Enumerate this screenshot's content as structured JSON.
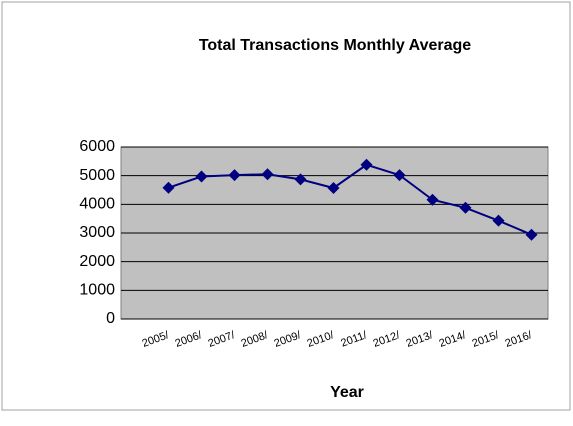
{
  "chart_data": {
    "type": "line",
    "title": "Total Transactions Monthly Average",
    "x_label": "Year",
    "categories": [
      "2005/",
      "2006/",
      "2007/",
      "2008/",
      "2009/",
      "2010/",
      "2011/",
      "2012/",
      "2013/",
      "2014/",
      "2015/",
      "2016/"
    ],
    "series": [
      {
        "color": "#000080",
        "values": [
          4580,
          4970,
          5020,
          5050,
          4870,
          4570,
          5380,
          5020,
          4160,
          3880,
          3430,
          2940
        ]
      }
    ],
    "ylim": [
      0,
      6000
    ],
    "yticks": [
      0,
      1000,
      2000,
      3000,
      4000,
      5000,
      6000
    ],
    "grid": true,
    "plot_background": "#c0c0c0"
  }
}
